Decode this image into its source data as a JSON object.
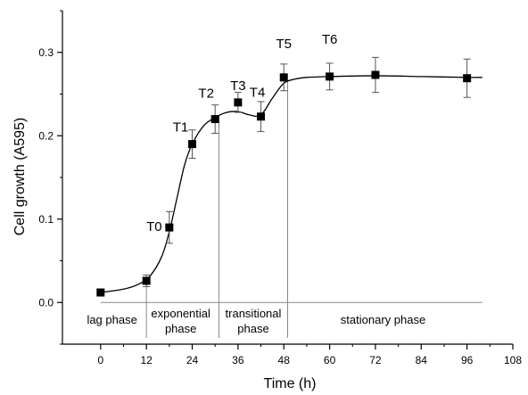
{
  "chart_data": {
    "type": "scatter",
    "xlabel": "Time (h)",
    "ylabel": "Cell growth (A595)",
    "xlim": [
      -10,
      108
    ],
    "ylim": [
      -0.05,
      0.35
    ],
    "xticks": [
      0,
      12,
      24,
      36,
      48,
      60,
      72,
      84,
      96,
      108
    ],
    "xtick_labels": [
      "0",
      "12",
      "24",
      "36",
      "48",
      "60",
      "72",
      "84",
      "96",
      "108"
    ],
    "yticks": [
      0.0,
      0.1,
      0.2,
      0.3
    ],
    "ytick_labels": [
      "0.0",
      "0.1",
      "0.2",
      "0.3"
    ],
    "grid": false,
    "series": [
      {
        "x": [
          0,
          12,
          18,
          24,
          30,
          36,
          42,
          48,
          60,
          72,
          96
        ],
        "y": [
          0.012,
          0.026,
          0.09,
          0.19,
          0.22,
          0.24,
          0.223,
          0.27,
          0.271,
          0.273,
          0.269
        ],
        "error": [
          0,
          0.007,
          0.019,
          0.017,
          0.017,
          0.012,
          0.018,
          0.016,
          0.016,
          0.021,
          0.023
        ],
        "marker": "square",
        "color": "#000000"
      }
    ],
    "fitted_curve": {
      "x": [
        0,
        6,
        10,
        13,
        16,
        18,
        20,
        22,
        24,
        27,
        30,
        33,
        36,
        39,
        42,
        45,
        48,
        51,
        54,
        60,
        72,
        84,
        96,
        100
      ],
      "y": [
        0.012,
        0.016,
        0.022,
        0.032,
        0.055,
        0.085,
        0.125,
        0.165,
        0.19,
        0.212,
        0.222,
        0.228,
        0.229,
        0.225,
        0.225,
        0.245,
        0.263,
        0.268,
        0.27,
        0.271,
        0.272,
        0.271,
        0.27,
        0.27
      ],
      "color": "#000000"
    },
    "point_labels": [
      {
        "text": "T0",
        "x": 18,
        "y": 0.09
      },
      {
        "text": "T1",
        "x": 24,
        "y": 0.19
      },
      {
        "text": "T2",
        "x": 30,
        "y": 0.22
      },
      {
        "text": "T3",
        "x": 36,
        "y": 0.24
      },
      {
        "text": "T4",
        "x": 42,
        "y": 0.223
      },
      {
        "text": "T5",
        "x": 48,
        "y": 0.27
      },
      {
        "text": "T6",
        "x": 60,
        "y": 0.271
      }
    ],
    "baseline": {
      "y": 0,
      "x_start": 0,
      "x_end": 100
    },
    "phase_dividers": [
      12,
      31,
      49
    ],
    "phases": [
      {
        "lines": [
          "lag phase"
        ],
        "x_center": 3
      },
      {
        "lines": [
          "exponential",
          "phase"
        ],
        "x_center": 21
      },
      {
        "lines": [
          "transitional",
          "phase"
        ],
        "x_center": 40
      },
      {
        "lines": [
          "stationary phase"
        ],
        "x_center": 74
      }
    ]
  }
}
